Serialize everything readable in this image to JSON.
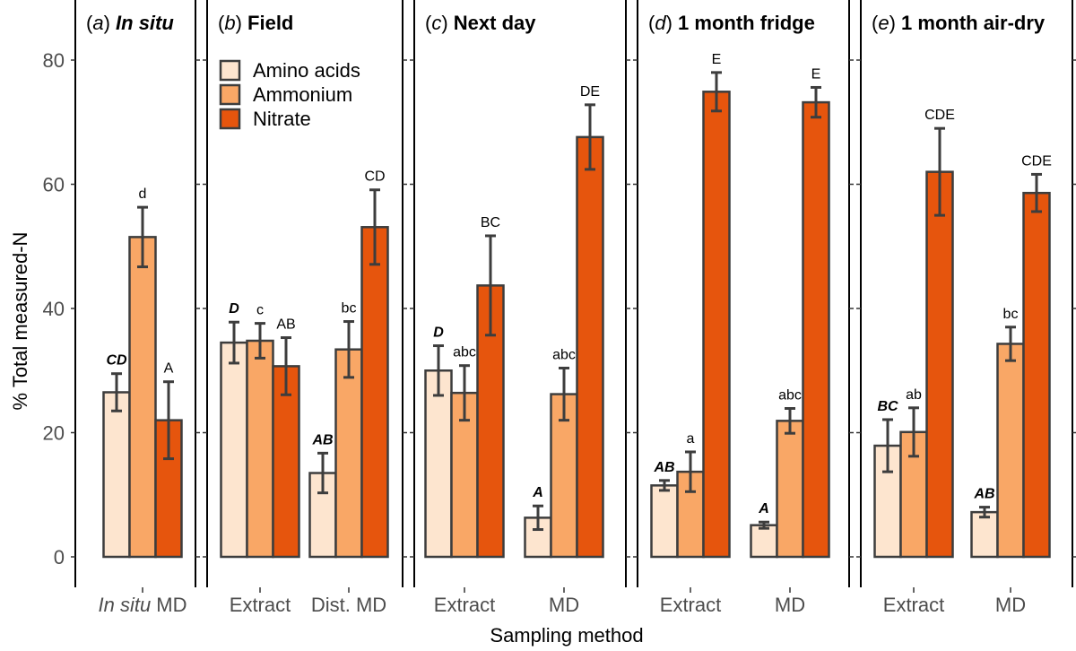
{
  "chart_data": {
    "type": "bar",
    "ylabel": "% Total measured-N",
    "xlabel": "Sampling method",
    "ylim": [
      0,
      85
    ],
    "yticks": [
      0,
      20,
      40,
      60,
      80
    ],
    "grid": false,
    "legend_position": "top-left of panel b",
    "series": [
      {
        "name": "Amino acids",
        "color": "#fde5cf"
      },
      {
        "name": "Ammonium",
        "color": "#f9a766"
      },
      {
        "name": "Nitrate",
        "color": "#e6550d"
      }
    ],
    "panels": [
      {
        "label": "(a)",
        "title": "In situ",
        "title_italic": true,
        "groups": [
          {
            "category": "In situ MD",
            "category_italic_part": "In situ",
            "category_rest": " MD",
            "bars": [
              {
                "series": "Amino acids",
                "value": 26.5,
                "err": 3.0,
                "sig": "CD",
                "sig_bold": true
              },
              {
                "series": "Ammonium",
                "value": 51.5,
                "err": 4.8,
                "sig": "d",
                "sig_bold": false
              },
              {
                "series": "Nitrate",
                "value": 22.0,
                "err": 6.2,
                "sig": "A",
                "sig_bold": false
              }
            ]
          }
        ]
      },
      {
        "label": "(b)",
        "title": "Field",
        "title_italic": false,
        "groups": [
          {
            "category": "Extract",
            "bars": [
              {
                "series": "Amino acids",
                "value": 34.5,
                "err": 3.3,
                "sig": "D",
                "sig_bold": true
              },
              {
                "series": "Ammonium",
                "value": 34.8,
                "err": 2.8,
                "sig": "c",
                "sig_bold": false
              },
              {
                "series": "Nitrate",
                "value": 30.7,
                "err": 4.6,
                "sig": "AB",
                "sig_bold": false
              }
            ]
          },
          {
            "category": "Dist. MD",
            "bars": [
              {
                "series": "Amino acids",
                "value": 13.5,
                "err": 3.2,
                "sig": "AB",
                "sig_bold": true
              },
              {
                "series": "Ammonium",
                "value": 33.4,
                "err": 4.5,
                "sig": "bc",
                "sig_bold": false
              },
              {
                "series": "Nitrate",
                "value": 53.1,
                "err": 6.0,
                "sig": "CD",
                "sig_bold": false
              }
            ]
          }
        ]
      },
      {
        "label": "(c)",
        "title": "Next day",
        "title_italic": false,
        "groups": [
          {
            "category": "Extract",
            "bars": [
              {
                "series": "Amino acids",
                "value": 30.0,
                "err": 4.0,
                "sig": "D",
                "sig_bold": true
              },
              {
                "series": "Ammonium",
                "value": 26.4,
                "err": 4.4,
                "sig": "abc",
                "sig_bold": false
              },
              {
                "series": "Nitrate",
                "value": 43.7,
                "err": 8.0,
                "sig": "BC",
                "sig_bold": false
              }
            ]
          },
          {
            "category": "MD",
            "bars": [
              {
                "series": "Amino acids",
                "value": 6.3,
                "err": 1.9,
                "sig": "A",
                "sig_bold": true
              },
              {
                "series": "Ammonium",
                "value": 26.2,
                "err": 4.2,
                "sig": "abc",
                "sig_bold": false
              },
              {
                "series": "Nitrate",
                "value": 67.6,
                "err": 5.2,
                "sig": "DE",
                "sig_bold": false
              }
            ]
          }
        ]
      },
      {
        "label": "(d)",
        "title": "1 month fridge",
        "title_italic": false,
        "groups": [
          {
            "category": "Extract",
            "bars": [
              {
                "series": "Amino acids",
                "value": 11.5,
                "err": 0.8,
                "sig": "AB",
                "sig_bold": true
              },
              {
                "series": "Ammonium",
                "value": 13.7,
                "err": 3.2,
                "sig": "a",
                "sig_bold": false
              },
              {
                "series": "Nitrate",
                "value": 74.9,
                "err": 3.1,
                "sig": "E",
                "sig_bold": false
              }
            ]
          },
          {
            "category": "MD",
            "bars": [
              {
                "series": "Amino acids",
                "value": 5.1,
                "err": 0.5,
                "sig": "A",
                "sig_bold": true
              },
              {
                "series": "Ammonium",
                "value": 21.9,
                "err": 2.0,
                "sig": "abc",
                "sig_bold": false
              },
              {
                "series": "Nitrate",
                "value": 73.2,
                "err": 2.4,
                "sig": "E",
                "sig_bold": false
              }
            ]
          }
        ]
      },
      {
        "label": "(e)",
        "title": "1 month air-dry",
        "title_italic": false,
        "groups": [
          {
            "category": "Extract",
            "bars": [
              {
                "series": "Amino acids",
                "value": 17.9,
                "err": 4.2,
                "sig": "BC",
                "sig_bold": true
              },
              {
                "series": "Ammonium",
                "value": 20.1,
                "err": 3.9,
                "sig": "ab",
                "sig_bold": false
              },
              {
                "series": "Nitrate",
                "value": 62.0,
                "err": 7.0,
                "sig": "CDE",
                "sig_bold": false
              }
            ]
          },
          {
            "category": "MD",
            "bars": [
              {
                "series": "Amino acids",
                "value": 7.2,
                "err": 0.8,
                "sig": "AB",
                "sig_bold": true
              },
              {
                "series": "Ammonium",
                "value": 34.3,
                "err": 2.7,
                "sig": "bc",
                "sig_bold": false
              },
              {
                "series": "Nitrate",
                "value": 58.6,
                "err": 3.0,
                "sig": "CDE",
                "sig_bold": false
              }
            ]
          }
        ]
      }
    ]
  }
}
